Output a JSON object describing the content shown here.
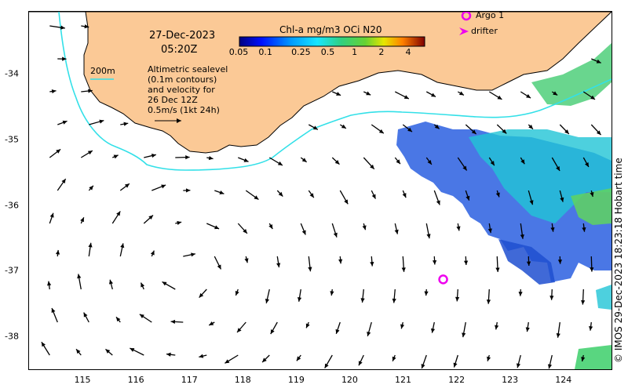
{
  "map": {
    "date_label": "27-Dec-2023",
    "time_label": "05:20Z",
    "isobath_label": "200m",
    "legend_lines": [
      "Altimetric sealevel",
      "(0.1m contours)",
      "and velocity for",
      "26 Dec 12Z"
    ],
    "scale_label": "0.5m/s (1kt 24h)",
    "colorbar_title": "Chl-a mg/m3 OCi N20",
    "colorbar_ticks": [
      "0.05",
      "0.1",
      "0.25",
      "0.5",
      "1",
      "2",
      "4"
    ],
    "argo_label": "Argo 1",
    "drifter_label": "drifter",
    "credit": "© IMOS 29-Dec-2023 18:23:18 Hobart time",
    "x_ticks": [
      "115",
      "116",
      "117",
      "118",
      "119",
      "120",
      "121",
      "122",
      "123",
      "124"
    ],
    "y_ticks": [
      "-34",
      "-35",
      "-36",
      "-37",
      "-38"
    ]
  },
  "colors": {
    "land": "#fbc996",
    "ocean": "#ffffff",
    "isobath": "#33e0e8",
    "argo": "#ee00ee",
    "arrow": "#000000",
    "chl_blue": "#2a5fe0",
    "chl_cyan": "#21c4d6",
    "chl_green": "#5fd35f"
  },
  "icons": {
    "argo_marker": "circle",
    "drifter_marker": "chevron-right"
  },
  "argo_float": {
    "lon": 121.75,
    "lat": -37.13
  },
  "domain": {
    "lon": [
      114,
      124.9
    ],
    "lat": [
      -38.5,
      -33.05
    ]
  }
}
